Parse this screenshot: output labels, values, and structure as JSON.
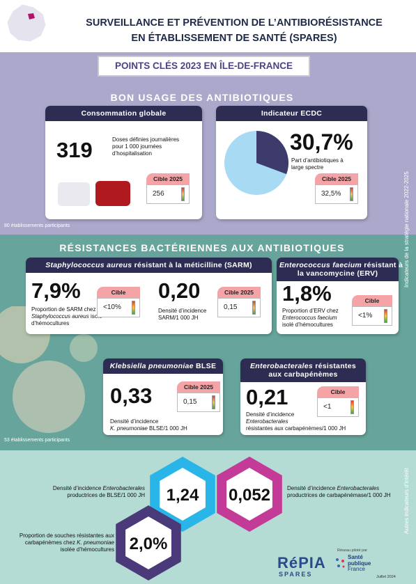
{
  "header": {
    "title": [
      "SURVEILLANCE ET PRÉVENTION DE L’ANTIBIORÉSISTANCE",
      "EN ÉTABLISSEMENT DE SANTÉ (SPARES)"
    ],
    "key_points": "POINTS CLÉS 2023 EN ÎLE-DE-FRANCE"
  },
  "side_labels": {
    "national": "Indicateurs de la stratégie nationale 2022-2025",
    "other": "Autres indicateurs d’intérêt"
  },
  "bon_usage": {
    "title": "BON USAGE DES ANTIBIOTIQUES",
    "participants": "80 établissements participants",
    "consommation": {
      "title": "Consommation globale",
      "value": "319",
      "description": [
        "Doses définies journalières",
        "pour 1 000 journées",
        "d’hospitalisation"
      ],
      "target_label": "Cible 2025",
      "target": "256"
    },
    "ecdc": {
      "title": "Indicateur ECDC",
      "value": 30.7,
      "value_label": "30,7%",
      "description": [
        "Part d’antibiotiques à",
        "large spectre"
      ],
      "target_label": "Cible 2025",
      "target": "32,5%"
    }
  },
  "resistances": {
    "title": "RÉSISTANCES BACTÉRIENNES AUX ANTIBIOTIQUES",
    "participants": "53 établissements participants",
    "sarm": {
      "title": [
        [
          {
            "t": "Staphylococcus aureus",
            "i": true
          },
          {
            "t": " résistant à la méticilline (SARM)"
          }
        ]
      ],
      "indicators": [
        {
          "value": "7,9%",
          "description": [
            "Proportion de SARM chez",
            [
              {
                "t": "Staphylococcus aureus",
                "i": true
              },
              {
                "t": " isolé"
              }
            ],
            "d’hémocultures"
          ],
          "target_label": "Cible",
          "target": "<10%"
        },
        {
          "value": "0,20",
          "description": [
            "Densité d’incidence",
            "SARM/1 000 JH"
          ],
          "target_label": "Cible 2025",
          "target": "0,15"
        }
      ]
    },
    "erv": {
      "title": [
        [
          {
            "t": "Enterococcus faecium",
            "i": true
          },
          {
            "t": " résistant à"
          }
        ],
        "la vancomycine (ERV)"
      ],
      "value": "1,8%",
      "description": [
        "Proportion d’ERV chez",
        [
          {
            "t": "Enterococcus faecium",
            "i": true
          }
        ],
        "isolé d’hémocultures"
      ],
      "target_label": "Cible",
      "target": "<1%"
    },
    "klebsiella": {
      "title": [
        [
          {
            "t": "Klebsiella pneumoniae",
            "i": true
          },
          {
            "t": " BLSE"
          }
        ]
      ],
      "value": "0,33",
      "description": [
        "Densité d’incidence",
        [
          {
            "t": "K. pneumoniae",
            "i": true
          },
          {
            "t": " BLSE/1 000 JH"
          }
        ]
      ],
      "target_label": "Cible 2025",
      "target": "0,15"
    },
    "enterobacterales": {
      "title": [
        [
          {
            "t": "Enterobacterales",
            "i": true
          },
          {
            "t": " résistantes"
          }
        ],
        "aux carbapénèmes"
      ],
      "value": "0,21",
      "description": [
        "Densité d’incidence",
        [
          {
            "t": "Enterobacterales",
            "i": true
          }
        ],
        "résistantes aux carbapénèmes/1 000 JH"
      ],
      "target_label": "Cible",
      "target": "<1"
    }
  },
  "other": {
    "indicators": [
      {
        "value": "1,24",
        "description": [
          [
            {
              "t": "Densité d’incidence "
            },
            {
              "t": "Enterobacterales",
              "i": true
            }
          ],
          "productrices de BLSE/1 000 JH"
        ]
      },
      {
        "value": "0,052",
        "description": [
          [
            {
              "t": "Densité d’incidence "
            },
            {
              "t": "Enterobacterales",
              "i": true
            }
          ],
          "productrices de carbapénémase/1 000 JH"
        ]
      },
      {
        "value": "2,0%",
        "description": [
          "Proportion de souches résistantes aux",
          [
            {
              "t": "carbapénèmes chez "
            },
            {
              "t": "K. pneumoniae",
              "i": true
            }
          ],
          "isolée d’hémocultures"
        ]
      }
    ]
  },
  "footer": {
    "logo": "RéPIA",
    "logo_sub": "SPARES",
    "pilot": "Réseau piloté par",
    "partner": [
      "Santé",
      "publique",
      "France"
    ],
    "date": "Juillet 2024"
  }
}
